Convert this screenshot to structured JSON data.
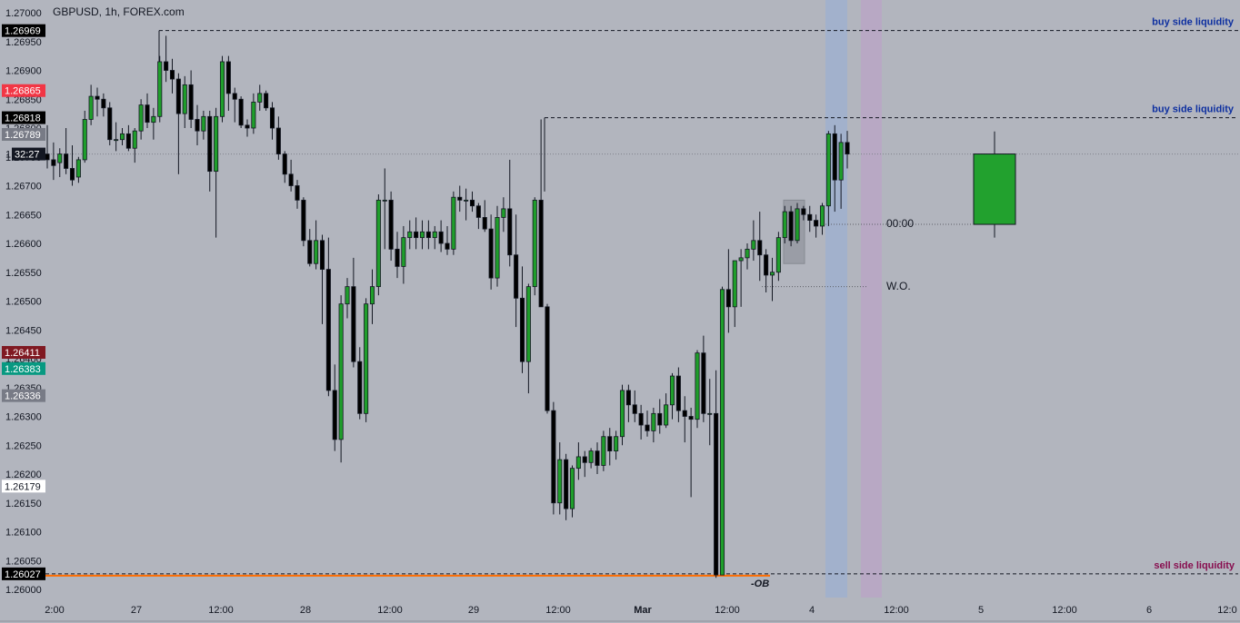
{
  "header": {
    "title": "GBPUSD, 1h, FOREX.com"
  },
  "chart_data": {
    "type": "candlestick",
    "ylim": [
      1.2597,
      1.2705
    ],
    "y_ticks": [
      "1.26000",
      "1.26050",
      "1.26100",
      "1.26150",
      "1.26200",
      "1.26250",
      "1.26300",
      "1.26350",
      "1.26400",
      "1.26450",
      "1.26500",
      "1.26550",
      "1.26600",
      "1.26650",
      "1.26700",
      "1.26750",
      "1.26800",
      "1.26850",
      "1.26900",
      "1.26950",
      "1.27000"
    ],
    "x_ticks": [
      "2:00",
      "27",
      "12:00",
      "28",
      "12:00",
      "29",
      "12:00",
      "Mar",
      "12:00",
      "4",
      "12:00",
      "5",
      "12:00",
      "6",
      "12:0"
    ],
    "price_labels": [
      {
        "text": "1.26969",
        "value": 1.26969,
        "bg": "#000000",
        "fg": "#ffffff"
      },
      {
        "text": "1.26865",
        "value": 1.26865,
        "bg": "#f23645",
        "fg": "#ffffff"
      },
      {
        "text": "1.26818",
        "value": 1.26818,
        "bg": "#000000",
        "fg": "#ffffff"
      },
      {
        "text": "1.26789",
        "value": 1.26789,
        "bg": "#787b86",
        "fg": "#ffffff"
      },
      {
        "text": "32:27",
        "value": 1.26755,
        "bg": "#131722",
        "fg": "#ffffff"
      },
      {
        "text": "1.26411",
        "value": 1.26411,
        "bg": "#801922",
        "fg": "#ffffff"
      },
      {
        "text": "1.26383",
        "value": 1.26383,
        "bg": "#089981",
        "fg": "#ffffff"
      },
      {
        "text": "1.26336",
        "value": 1.26336,
        "bg": "#787b86",
        "fg": "#ffffff"
      },
      {
        "text": "1.26179",
        "value": 1.26179,
        "bg": "#ffffff",
        "fg": "#131722"
      },
      {
        "text": "1.26027",
        "value": 1.26027,
        "bg": "#000000",
        "fg": "#ffffff"
      }
    ],
    "annotations": {
      "bsl_top": {
        "text": "buy side liquidity",
        "value": 1.26969,
        "color": "#0d2fa0"
      },
      "bsl_mid": {
        "text": "buy side liquidity",
        "value": 1.26818,
        "color": "#0d2fa0"
      },
      "ssl": {
        "text": "sell side liquidity",
        "value": 1.26027,
        "color": "#880e4f"
      },
      "ob": {
        "text": "-OB"
      },
      "open_time": {
        "text": "00:00"
      },
      "weekly_open": {
        "text": "W.O."
      }
    },
    "colors": {
      "up": "#1f9e2b",
      "down": "#000000",
      "bg": "#b2b5be",
      "session_blue": "#9fb0cf",
      "session_purple": "#b8a6c6",
      "ob_line": "#ff6d00"
    },
    "candles": [
      [
        1.26755,
        1.26805,
        1.2673,
        1.26745
      ],
      [
        1.26745,
        1.26775,
        1.2671,
        1.26735
      ],
      [
        1.2674,
        1.26765,
        1.26715,
        1.26755
      ],
      [
        1.26755,
        1.268,
        1.2672,
        1.2673
      ],
      [
        1.2673,
        1.2677,
        1.267,
        1.2671
      ],
      [
        1.26715,
        1.2675,
        1.26705,
        1.26745
      ],
      [
        1.26745,
        1.2683,
        1.2674,
        1.26815
      ],
      [
        1.26815,
        1.26875,
        1.26805,
        1.26855
      ],
      [
        1.26855,
        1.2687,
        1.2682,
        1.2685
      ],
      [
        1.2685,
        1.2686,
        1.2682,
        1.26835
      ],
      [
        1.26835,
        1.26845,
        1.2677,
        1.2678
      ],
      [
        1.2678,
        1.2681,
        1.2676,
        1.2678
      ],
      [
        1.2678,
        1.268,
        1.2677,
        1.2679
      ],
      [
        1.2679,
        1.26805,
        1.2676,
        1.26765
      ],
      [
        1.26765,
        1.268,
        1.2674,
        1.26795
      ],
      [
        1.26795,
        1.2685,
        1.2678,
        1.2684
      ],
      [
        1.2684,
        1.2686,
        1.268,
        1.2681
      ],
      [
        1.2681,
        1.26835,
        1.2678,
        1.2682
      ],
      [
        1.2682,
        1.26925,
        1.2681,
        1.26915
      ],
      [
        1.26915,
        1.2696,
        1.2688,
        1.269
      ],
      [
        1.269,
        1.2692,
        1.2686,
        1.26885
      ],
      [
        1.26885,
        1.26895,
        1.2672,
        1.26825
      ],
      [
        1.26825,
        1.2689,
        1.268,
        1.26875
      ],
      [
        1.26875,
        1.269,
        1.268,
        1.26815
      ],
      [
        1.26815,
        1.2684,
        1.2677,
        1.26795
      ],
      [
        1.26795,
        1.2683,
        1.2678,
        1.2682
      ],
      [
        1.2682,
        1.2683,
        1.2669,
        1.26725
      ],
      [
        1.26725,
        1.26835,
        1.2661,
        1.2682
      ],
      [
        1.2682,
        1.26925,
        1.2681,
        1.26915
      ],
      [
        1.26915,
        1.26925,
        1.2683,
        1.2686
      ],
      [
        1.2686,
        1.2687,
        1.2681,
        1.2685
      ],
      [
        1.2685,
        1.26855,
        1.268,
        1.26805
      ],
      [
        1.26805,
        1.26815,
        1.26785,
        1.268
      ],
      [
        1.268,
        1.2686,
        1.2679,
        1.26845
      ],
      [
        1.26845,
        1.26875,
        1.2683,
        1.2686
      ],
      [
        1.2686,
        1.26865,
        1.2683,
        1.26835
      ],
      [
        1.26835,
        1.26845,
        1.2678,
        1.268
      ],
      [
        1.268,
        1.2682,
        1.26745,
        1.26755
      ],
      [
        1.26755,
        1.2676,
        1.26705,
        1.2672
      ],
      [
        1.2672,
        1.26745,
        1.2669,
        1.267
      ],
      [
        1.267,
        1.2671,
        1.2666,
        1.26675
      ],
      [
        1.26675,
        1.2668,
        1.26595,
        1.26605
      ],
      [
        1.26605,
        1.26625,
        1.2656,
        1.26565
      ],
      [
        1.26565,
        1.2664,
        1.26555,
        1.26605
      ],
      [
        1.26605,
        1.26615,
        1.2646,
        1.26555
      ],
      [
        1.26555,
        1.2661,
        1.26335,
        1.26345
      ],
      [
        1.26345,
        1.2639,
        1.2624,
        1.2626
      ],
      [
        1.2626,
        1.2651,
        1.2622,
        1.26495
      ],
      [
        1.26495,
        1.2654,
        1.2647,
        1.26525
      ],
      [
        1.26525,
        1.26575,
        1.26385,
        1.26395
      ],
      [
        1.26395,
        1.2642,
        1.26295,
        1.26305
      ],
      [
        1.26305,
        1.26505,
        1.2629,
        1.26495
      ],
      [
        1.26495,
        1.26555,
        1.2646,
        1.26525
      ],
      [
        1.26525,
        1.26685,
        1.2651,
        1.26675
      ],
      [
        1.26675,
        1.2673,
        1.2659,
        1.26675
      ],
      [
        1.26675,
        1.2669,
        1.2657,
        1.2659
      ],
      [
        1.2659,
        1.2662,
        1.2654,
        1.2656
      ],
      [
        1.2656,
        1.2663,
        1.2653,
        1.2661
      ],
      [
        1.2661,
        1.2664,
        1.2659,
        1.2662
      ],
      [
        1.2662,
        1.26645,
        1.2659,
        1.2661
      ],
      [
        1.2661,
        1.2664,
        1.2659,
        1.2662
      ],
      [
        1.2662,
        1.2664,
        1.2659,
        1.2661
      ],
      [
        1.2661,
        1.2663,
        1.2659,
        1.2662
      ],
      [
        1.2662,
        1.2664,
        1.26585,
        1.266
      ],
      [
        1.266,
        1.2663,
        1.2658,
        1.2659
      ],
      [
        1.2659,
        1.2669,
        1.2658,
        1.2668
      ],
      [
        1.2668,
        1.267,
        1.26655,
        1.26675
      ],
      [
        1.26675,
        1.26695,
        1.2664,
        1.26675
      ],
      [
        1.26675,
        1.2669,
        1.26655,
        1.26665
      ],
      [
        1.26665,
        1.2667,
        1.26625,
        1.26645
      ],
      [
        1.26645,
        1.26675,
        1.2662,
        1.26625
      ],
      [
        1.26625,
        1.2665,
        1.2652,
        1.2654
      ],
      [
        1.2654,
        1.26665,
        1.26525,
        1.26645
      ],
      [
        1.26645,
        1.2668,
        1.2662,
        1.2666
      ],
      [
        1.2666,
        1.26745,
        1.2656,
        1.2658
      ],
      [
        1.2658,
        1.2665,
        1.26455,
        1.26505
      ],
      [
        1.26505,
        1.2656,
        1.26375,
        1.26395
      ],
      [
        1.26395,
        1.2653,
        1.2634,
        1.26525
      ],
      [
        1.26525,
        1.2668,
        1.2651,
        1.26675
      ],
      [
        1.26675,
        1.26815,
        1.26495,
        1.2649
      ],
      [
        1.2649,
        1.26495,
        1.26305,
        1.2631
      ],
      [
        1.2631,
        1.26325,
        1.2613,
        1.2615
      ],
      [
        1.2615,
        1.26255,
        1.2613,
        1.26225
      ],
      [
        1.26225,
        1.26235,
        1.2612,
        1.2614
      ],
      [
        1.2614,
        1.26215,
        1.26125,
        1.2621
      ],
      [
        1.2621,
        1.26255,
        1.2619,
        1.2623
      ],
      [
        1.2623,
        1.2624,
        1.26195,
        1.2622
      ],
      [
        1.2622,
        1.26245,
        1.2621,
        1.2624
      ],
      [
        1.2624,
        1.26255,
        1.262,
        1.26215
      ],
      [
        1.26215,
        1.26275,
        1.26205,
        1.26265
      ],
      [
        1.26265,
        1.2628,
        1.26215,
        1.2624
      ],
      [
        1.2624,
        1.26275,
        1.26225,
        1.26265
      ],
      [
        1.26265,
        1.26355,
        1.2625,
        1.26345
      ],
      [
        1.26345,
        1.26355,
        1.2629,
        1.2632
      ],
      [
        1.2632,
        1.26345,
        1.2629,
        1.26305
      ],
      [
        1.26305,
        1.2632,
        1.2626,
        1.26285
      ],
      [
        1.26285,
        1.2631,
        1.26265,
        1.26275
      ],
      [
        1.26275,
        1.26315,
        1.26255,
        1.26305
      ],
      [
        1.26305,
        1.2633,
        1.2627,
        1.26285
      ],
      [
        1.26285,
        1.2634,
        1.2628,
        1.2632
      ],
      [
        1.2632,
        1.26375,
        1.26295,
        1.2637
      ],
      [
        1.2637,
        1.26385,
        1.2629,
        1.2631
      ],
      [
        1.2631,
        1.26335,
        1.26255,
        1.263
      ],
      [
        1.263,
        1.26315,
        1.2616,
        1.26295
      ],
      [
        1.26295,
        1.26415,
        1.2628,
        1.2641
      ],
      [
        1.2641,
        1.2644,
        1.2629,
        1.26305
      ],
      [
        1.26305,
        1.26365,
        1.2625,
        1.26305
      ],
      [
        1.26305,
        1.2638,
        1.2602,
        1.26025
      ],
      [
        1.26025,
        1.26525,
        1.26025,
        1.2652
      ],
      [
        1.2652,
        1.2659,
        1.26445,
        1.2649
      ],
      [
        1.2649,
        1.2657,
        1.26455,
        1.2657
      ],
      [
        1.2657,
        1.2659,
        1.2649,
        1.26575
      ],
      [
        1.26575,
        1.266,
        1.26555,
        1.2659
      ],
      [
        1.2659,
        1.2664,
        1.2657,
        1.26605
      ],
      [
        1.26605,
        1.26655,
        1.26535,
        1.2658
      ],
      [
        1.2658,
        1.2659,
        1.26515,
        1.26545
      ],
      [
        1.26545,
        1.26575,
        1.265,
        1.2655
      ],
      [
        1.2655,
        1.2662,
        1.26535,
        1.2661
      ],
      [
        1.2661,
        1.26665,
        1.266,
        1.26655
      ],
      [
        1.26655,
        1.26665,
        1.26595,
        1.26605
      ],
      [
        1.26605,
        1.2667,
        1.266,
        1.2666
      ],
      [
        1.2666,
        1.26665,
        1.2664,
        1.2665
      ],
      [
        1.2665,
        1.26665,
        1.2662,
        1.2664
      ],
      [
        1.2664,
        1.2665,
        1.2661,
        1.2663
      ],
      [
        1.2663,
        1.2667,
        1.26615,
        1.26665
      ],
      [
        1.26665,
        1.26795,
        1.2663,
        1.2679
      ],
      [
        1.2679,
        1.26805,
        1.26655,
        1.2671
      ],
      [
        1.2671,
        1.2679,
        1.2666,
        1.26775
      ],
      [
        1.26775,
        1.26795,
        1.2673,
        1.26755
      ]
    ],
    "forecast_candle": {
      "open": 1.26633,
      "high": 1.26794,
      "low": 1.2661,
      "close": 1.26755
    },
    "session_bands": [
      "blue",
      "purple"
    ]
  }
}
